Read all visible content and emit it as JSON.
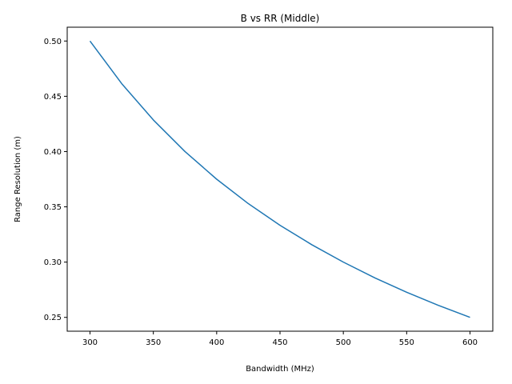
{
  "chart_data": {
    "type": "line",
    "title": "B vs RR (Middle)",
    "xlabel": "Bandwidth (MHz)",
    "ylabel": "Range Resolution (m)",
    "xlim": [
      282,
      618
    ],
    "ylim": [
      0.2375,
      0.5125
    ],
    "xticks": [
      300,
      350,
      400,
      450,
      500,
      550,
      600
    ],
    "yticks": [
      0.25,
      0.3,
      0.35,
      0.4,
      0.45,
      0.5
    ],
    "grid": false,
    "series": [
      {
        "color": "#1f77b4",
        "x": [
          300,
          325,
          350,
          375,
          400,
          425,
          450,
          475,
          500,
          525,
          550,
          575,
          600
        ],
        "y": [
          0.5,
          0.4615,
          0.4286,
          0.4,
          0.375,
          0.3529,
          0.3333,
          0.3158,
          0.3,
          0.2857,
          0.2727,
          0.2609,
          0.25
        ]
      }
    ]
  }
}
